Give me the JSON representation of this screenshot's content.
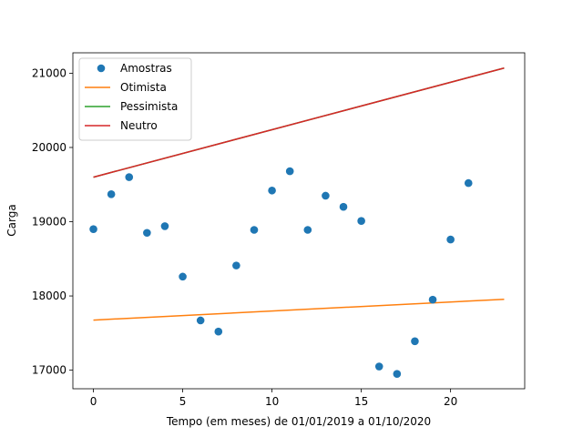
{
  "chart_data": {
    "type": "scatter",
    "xlabel": "Tempo (em meses) de 01/01/2019 a 01/10/2020",
    "ylabel": "Carga",
    "xlim": [
      -1.15,
      24.15
    ],
    "ylim": [
      16750,
      21275
    ],
    "xticks": [
      0,
      5,
      10,
      15,
      20
    ],
    "yticks": [
      17000,
      18000,
      19000,
      20000,
      21000
    ],
    "legend_position": "top-left",
    "grid": false,
    "scatter": {
      "name": "Amostras",
      "color": "#1f77b4",
      "x": [
        0,
        1,
        2,
        3,
        4,
        5,
        6,
        7,
        8,
        9,
        10,
        11,
        12,
        13,
        14,
        15,
        16,
        17,
        18,
        19,
        20,
        21
      ],
      "y": [
        18900,
        19370,
        19600,
        18850,
        18940,
        18260,
        17670,
        17520,
        18410,
        18890,
        19420,
        19680,
        18890,
        19350,
        19200,
        19010,
        17050,
        16950,
        17390,
        17950,
        18760,
        19520
      ]
    },
    "lines": [
      {
        "name": "Otimista",
        "color": "#ff7f0e",
        "x": [
          0,
          23
        ],
        "y": [
          17675,
          17955
        ]
      },
      {
        "name": "Pessimista",
        "color": "#2ca02c",
        "x": [
          0,
          23
        ],
        "y": [
          19600,
          21070
        ]
      },
      {
        "name": "Neutro",
        "color": "#d62728",
        "x": [
          0,
          23
        ],
        "y": [
          19600,
          21070
        ]
      }
    ]
  }
}
